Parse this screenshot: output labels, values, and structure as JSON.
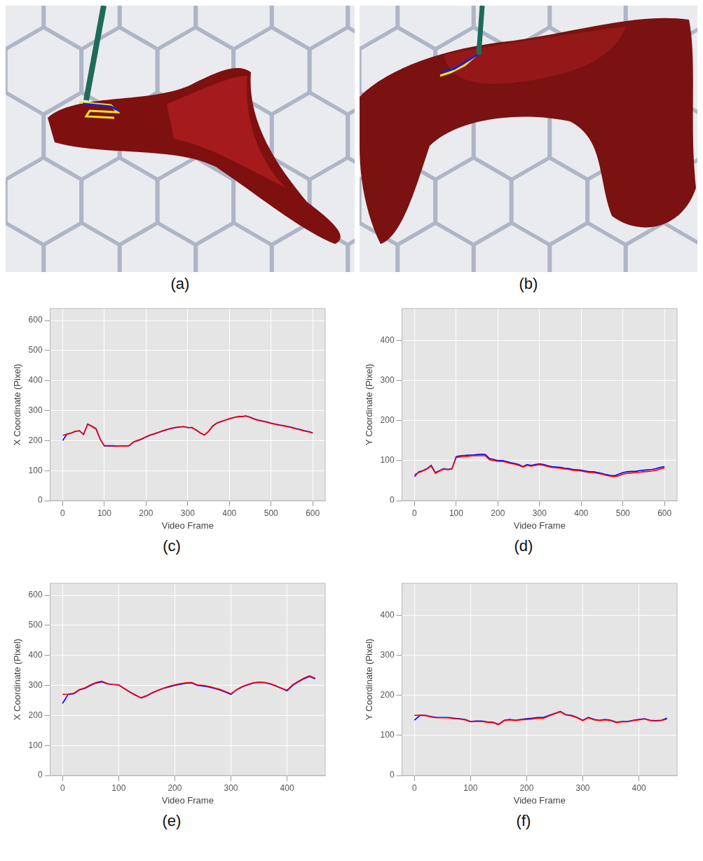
{
  "images": [
    {
      "label": "(a)"
    },
    {
      "label": "(b)"
    }
  ],
  "chart_data": [
    {
      "label": "(c)",
      "type": "line",
      "xlabel": "Video Frame",
      "ylabel": "X Coordinate (Pixel)",
      "xlim": [
        -30,
        630
      ],
      "ylim": [
        0,
        640
      ],
      "xticks": [
        0,
        100,
        200,
        300,
        400,
        500,
        600
      ],
      "yticks": [
        0,
        100,
        200,
        300,
        400,
        500,
        600
      ],
      "grid": true,
      "x": [
        0,
        10,
        20,
        30,
        40,
        50,
        60,
        70,
        80,
        90,
        100,
        110,
        120,
        130,
        140,
        150,
        160,
        170,
        180,
        190,
        200,
        210,
        220,
        230,
        240,
        250,
        260,
        270,
        280,
        290,
        300,
        310,
        320,
        330,
        340,
        350,
        360,
        370,
        380,
        390,
        400,
        410,
        420,
        430,
        440,
        450,
        460,
        470,
        480,
        490,
        500,
        510,
        520,
        530,
        540,
        550,
        560,
        570,
        580,
        590,
        600
      ],
      "series": [
        {
          "color": "#ff0000",
          "values": [
            218,
            221,
            225,
            231,
            233,
            221,
            254,
            247,
            238,
            204,
            183,
            183,
            183,
            182,
            182,
            181,
            184,
            196,
            201,
            206,
            213,
            219,
            223,
            228,
            233,
            237,
            241,
            244,
            246,
            246,
            244,
            243,
            236,
            226,
            219,
            231,
            249,
            259,
            264,
            268,
            273,
            277,
            280,
            281,
            282,
            277,
            271,
            267,
            264,
            261,
            257,
            254,
            251,
            249,
            246,
            243,
            239,
            236,
            232,
            229,
            225
          ]
        },
        {
          "color": "#0000ff",
          "values": [
            200,
            222,
            225,
            230,
            233,
            220,
            255,
            248,
            240,
            205,
            182,
            182,
            182,
            181,
            182,
            182,
            183,
            195,
            200,
            205,
            212,
            218,
            222,
            227,
            232,
            236,
            240,
            243,
            245,
            247,
            243,
            244,
            235,
            225,
            218,
            230,
            248,
            258,
            263,
            268,
            272,
            276,
            279,
            280,
            282,
            278,
            272,
            268,
            265,
            262,
            258,
            255,
            252,
            250,
            247,
            244,
            240,
            237,
            233,
            230,
            226
          ]
        }
      ]
    },
    {
      "label": "(d)",
      "type": "line",
      "xlabel": "Video Frame",
      "ylabel": "Y Coordinate (Pixel)",
      "xlim": [
        -30,
        630
      ],
      "ylim": [
        0,
        480
      ],
      "xticks": [
        0,
        100,
        200,
        300,
        400,
        500,
        600
      ],
      "yticks": [
        0,
        100,
        200,
        300,
        400
      ],
      "grid": true,
      "x": [
        0,
        10,
        20,
        30,
        40,
        50,
        60,
        70,
        80,
        90,
        100,
        110,
        120,
        130,
        140,
        150,
        160,
        170,
        180,
        190,
        200,
        210,
        220,
        230,
        240,
        250,
        260,
        270,
        280,
        290,
        300,
        310,
        320,
        330,
        340,
        350,
        360,
        370,
        380,
        390,
        400,
        410,
        420,
        430,
        440,
        450,
        460,
        470,
        480,
        490,
        500,
        510,
        520,
        530,
        540,
        550,
        560,
        570,
        580,
        590,
        600
      ],
      "series": [
        {
          "color": "#ff0000",
          "values": [
            65,
            70,
            74,
            79,
            86,
            68,
            74,
            79,
            77,
            79,
            108,
            109,
            110,
            111,
            112,
            112,
            112,
            112,
            102,
            100,
            98,
            98,
            96,
            93,
            91,
            88,
            84,
            88,
            86,
            88,
            90,
            88,
            85,
            83,
            82,
            81,
            79,
            78,
            76,
            75,
            74,
            72,
            70,
            70,
            68,
            66,
            63,
            61,
            60,
            62,
            66,
            68,
            69,
            70,
            71,
            72,
            73,
            74,
            76,
            79,
            82
          ]
        },
        {
          "color": "#0000ff",
          "values": [
            60,
            72,
            75,
            80,
            88,
            70,
            75,
            80,
            78,
            80,
            110,
            112,
            113,
            114,
            114,
            115,
            116,
            115,
            105,
            103,
            100,
            100,
            98,
            95,
            93,
            90,
            85,
            90,
            88,
            90,
            92,
            90,
            87,
            85,
            84,
            83,
            81,
            80,
            78,
            77,
            76,
            74,
            72,
            72,
            70,
            68,
            65,
            63,
            62,
            66,
            70,
            72,
            73,
            73,
            75,
            76,
            77,
            78,
            80,
            83,
            85
          ]
        }
      ]
    },
    {
      "label": "(e)",
      "type": "line",
      "xlabel": "Video Frame",
      "ylabel": "X Coordinate (Pixel)",
      "xlim": [
        -22,
        468
      ],
      "ylim": [
        0,
        640
      ],
      "xticks": [
        0,
        100,
        200,
        300,
        400
      ],
      "yticks": [
        0,
        100,
        200,
        300,
        400,
        500,
        600
      ],
      "grid": true,
      "x": [
        0,
        10,
        20,
        30,
        40,
        50,
        60,
        70,
        80,
        90,
        100,
        110,
        120,
        130,
        140,
        150,
        160,
        170,
        180,
        190,
        200,
        210,
        220,
        230,
        240,
        250,
        260,
        270,
        280,
        290,
        300,
        310,
        320,
        330,
        340,
        350,
        360,
        370,
        380,
        390,
        400,
        410,
        420,
        430,
        440,
        450
      ],
      "series": [
        {
          "color": "#ff0000",
          "values": [
            270,
            271,
            274,
            286,
            292,
            302,
            310,
            314,
            306,
            303,
            301,
            289,
            277,
            267,
            259,
            266,
            276,
            284,
            291,
            297,
            302,
            306,
            309,
            310,
            302,
            300,
            297,
            292,
            287,
            280,
            272,
            286,
            296,
            303,
            309,
            311,
            310,
            306,
            299,
            291,
            284,
            302,
            314,
            324,
            332,
            324
          ]
        },
        {
          "color": "#0000ff",
          "values": [
            240,
            270,
            272,
            285,
            290,
            300,
            308,
            312,
            305,
            303,
            302,
            290,
            278,
            268,
            258,
            265,
            275,
            283,
            290,
            295,
            300,
            304,
            307,
            308,
            300,
            298,
            295,
            290,
            285,
            278,
            270,
            285,
            295,
            302,
            308,
            310,
            309,
            305,
            298,
            290,
            282,
            300,
            312,
            322,
            330,
            322
          ]
        }
      ]
    },
    {
      "label": "(f)",
      "type": "line",
      "xlabel": "Video Frame",
      "ylabel": "Y Coordinate (Pixel)",
      "xlim": [
        -22,
        468
      ],
      "ylim": [
        0,
        480
      ],
      "xticks": [
        0,
        100,
        200,
        300,
        400
      ],
      "yticks": [
        0,
        100,
        200,
        300,
        400
      ],
      "grid": true,
      "x": [
        0,
        10,
        20,
        30,
        40,
        50,
        60,
        70,
        80,
        90,
        100,
        110,
        120,
        130,
        140,
        150,
        160,
        170,
        180,
        190,
        200,
        210,
        220,
        230,
        240,
        250,
        260,
        270,
        280,
        290,
        300,
        310,
        320,
        330,
        340,
        350,
        360,
        370,
        380,
        390,
        400,
        410,
        420,
        430,
        440,
        450
      ],
      "series": [
        {
          "color": "#ff0000",
          "values": [
            150,
            151,
            150,
            146,
            144,
            144,
            144,
            142,
            141,
            139,
            134,
            135,
            135,
            133,
            132,
            127,
            137,
            139,
            137,
            139,
            140,
            141,
            143,
            143,
            149,
            154,
            159,
            151,
            149,
            144,
            137,
            144,
            139,
            137,
            139,
            137,
            132,
            134,
            134,
            137,
            139,
            141,
            137,
            136,
            137,
            141
          ]
        },
        {
          "color": "#0000ff",
          "values": [
            138,
            150,
            150,
            147,
            145,
            145,
            145,
            143,
            142,
            140,
            135,
            136,
            136,
            134,
            133,
            128,
            138,
            140,
            138,
            140,
            142,
            143,
            145,
            145,
            150,
            155,
            160,
            152,
            150,
            145,
            138,
            145,
            140,
            138,
            140,
            138,
            133,
            135,
            135,
            138,
            140,
            142,
            138,
            137,
            138,
            143
          ]
        }
      ]
    }
  ]
}
